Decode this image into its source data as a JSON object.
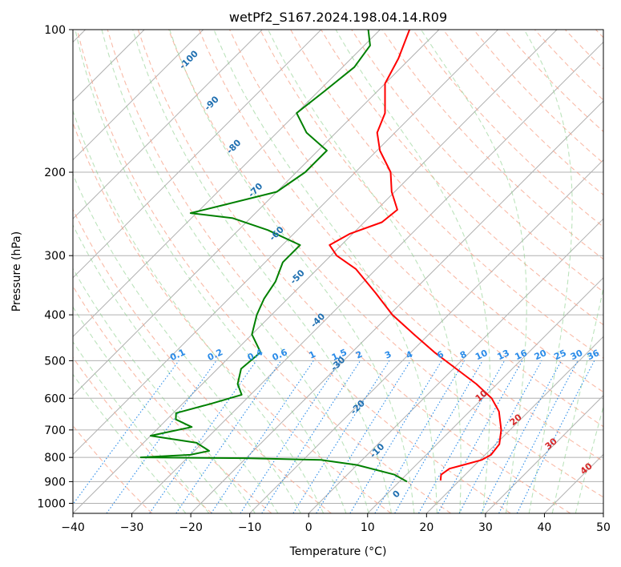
{
  "chart_data": {
    "type": "line",
    "title": "wetPf2_S167.2024.198.04.14.R09",
    "xlabel": "Temperature (°C)",
    "ylabel": "Pressure (hPa)",
    "xlim": [
      -40,
      50
    ],
    "ylim": [
      1050,
      100
    ],
    "y_scale": "log",
    "grid": true,
    "x_ticks": [
      -40,
      -30,
      -20,
      -10,
      0,
      10,
      20,
      30,
      40,
      50
    ],
    "y_ticks": [
      100,
      200,
      300,
      400,
      500,
      600,
      700,
      800,
      900,
      1000
    ],
    "skew_t": true,
    "series": [
      {
        "color": "#ff0000",
        "values": [
          {
            "p": 895,
            "t": 16.8
          },
          {
            "p": 870,
            "t": 15.9
          },
          {
            "p": 845,
            "t": 16.3
          },
          {
            "p": 830,
            "t": 18.0
          },
          {
            "p": 810,
            "t": 20.3
          },
          {
            "p": 790,
            "t": 21.0
          },
          {
            "p": 750,
            "t": 20.6
          },
          {
            "p": 700,
            "t": 18.5
          },
          {
            "p": 640,
            "t": 15.0
          },
          {
            "p": 600,
            "t": 11.5
          },
          {
            "p": 560,
            "t": 6.5
          },
          {
            "p": 520,
            "t": 0.5
          },
          {
            "p": 480,
            "t": -6.0
          },
          {
            "p": 440,
            "t": -12.5
          },
          {
            "p": 400,
            "t": -19.5
          },
          {
            "p": 360,
            "t": -26.0
          },
          {
            "p": 320,
            "t": -33.5
          },
          {
            "p": 300,
            "t": -39.0
          },
          {
            "p": 285,
            "t": -42.0
          },
          {
            "p": 270,
            "t": -40.5
          },
          {
            "p": 255,
            "t": -37.0
          },
          {
            "p": 240,
            "t": -36.5
          },
          {
            "p": 220,
            "t": -40.5
          },
          {
            "p": 200,
            "t": -44.0
          },
          {
            "p": 180,
            "t": -49.5
          },
          {
            "p": 165,
            "t": -53.0
          },
          {
            "p": 150,
            "t": -55.0
          },
          {
            "p": 130,
            "t": -60.0
          },
          {
            "p": 115,
            "t": -62.0
          },
          {
            "p": 100,
            "t": -65.0
          }
        ]
      },
      {
        "color": "#008000",
        "values": [
          {
            "p": 900,
            "t": 11.3
          },
          {
            "p": 870,
            "t": 8.0
          },
          {
            "p": 830,
            "t": 0.0
          },
          {
            "p": 810,
            "t": -7.0
          },
          {
            "p": 803,
            "t": -20.0
          },
          {
            "p": 800,
            "t": -38.0
          },
          {
            "p": 790,
            "t": -30.0
          },
          {
            "p": 775,
            "t": -27.5
          },
          {
            "p": 745,
            "t": -31.0
          },
          {
            "p": 720,
            "t": -40.0
          },
          {
            "p": 690,
            "t": -34.5
          },
          {
            "p": 665,
            "t": -38.5
          },
          {
            "p": 645,
            "t": -39.5
          },
          {
            "p": 615,
            "t": -35.0
          },
          {
            "p": 590,
            "t": -31.5
          },
          {
            "p": 560,
            "t": -34.0
          },
          {
            "p": 520,
            "t": -36.0
          },
          {
            "p": 480,
            "t": -35.5
          },
          {
            "p": 440,
            "t": -40.0
          },
          {
            "p": 400,
            "t": -42.5
          },
          {
            "p": 370,
            "t": -44.0
          },
          {
            "p": 340,
            "t": -45.0
          },
          {
            "p": 310,
            "t": -47.0
          },
          {
            "p": 285,
            "t": -47.0
          },
          {
            "p": 265,
            "t": -55.0
          },
          {
            "p": 250,
            "t": -63.0
          },
          {
            "p": 244,
            "t": -71.0
          },
          {
            "p": 235,
            "t": -67.0
          },
          {
            "p": 220,
            "t": -60.0
          },
          {
            "p": 200,
            "t": -58.5
          },
          {
            "p": 180,
            "t": -58.5
          },
          {
            "p": 165,
            "t": -65.0
          },
          {
            "p": 150,
            "t": -70.0
          },
          {
            "p": 135,
            "t": -69.0
          },
          {
            "p": 120,
            "t": -68.0
          },
          {
            "p": 108,
            "t": -69.0
          },
          {
            "p": 100,
            "t": -72.0
          }
        ]
      }
    ],
    "dry_adiabat_labels": [
      "-100",
      "-90",
      "-80",
      "-70",
      "-60",
      "-50",
      "-40",
      "-30",
      "-20",
      "-10",
      "0"
    ],
    "moist_adiabat_labels": [
      "10",
      "20",
      "30",
      "40"
    ],
    "mixing_ratio_labels": [
      "0.1",
      "0.2",
      "0.4",
      "0.6",
      "1",
      "1.5",
      "2",
      "3",
      "4",
      "6",
      "8",
      "10",
      "13",
      "16",
      "20",
      "25",
      "30",
      "36"
    ],
    "colors": {
      "isotherm": "#b0b0b0",
      "dry_adiabat": "#f7a38a",
      "moist_adiabat": "#8fd08f",
      "mixing_ratio": "#2a8be8",
      "isobar_grid": "#b0b0b0"
    }
  }
}
